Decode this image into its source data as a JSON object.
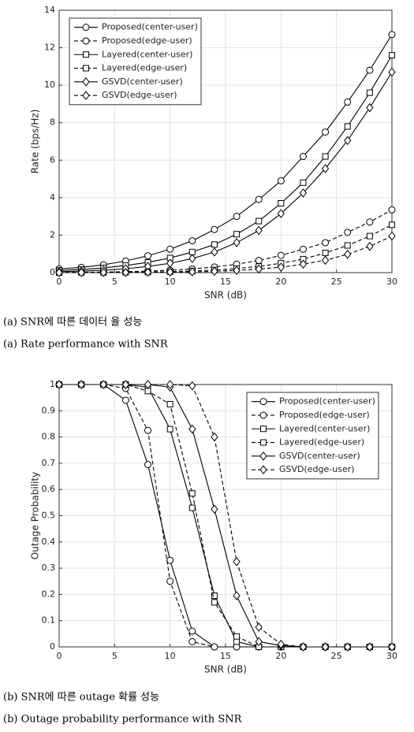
{
  "chart_data": [
    {
      "type": "line",
      "ylabel": "Rate (bps/Hz)",
      "xlabel": "SNR (dB)",
      "caption_ko": "(a) SNR에 따른 데이터 율 성능",
      "caption_en": "(a) Rate performance with SNR",
      "x": [
        0,
        2,
        4,
        6,
        8,
        10,
        12,
        14,
        16,
        18,
        20,
        22,
        24,
        26,
        28,
        30
      ],
      "xlim": [
        0,
        30
      ],
      "xticks": [
        0,
        5,
        10,
        15,
        20,
        25,
        30
      ],
      "ylim": [
        0,
        14
      ],
      "yticks": [
        0,
        2,
        4,
        6,
        8,
        10,
        12,
        14
      ],
      "grid": true,
      "legend": "upper left",
      "series": [
        {
          "name": "Proposed(center-user)",
          "color": "#000000",
          "linestyle": "solid",
          "marker": "circle",
          "values": [
            0.2,
            0.28,
            0.42,
            0.62,
            0.9,
            1.25,
            1.7,
            2.3,
            3.0,
            3.9,
            4.9,
            6.2,
            7.5,
            9.1,
            10.8,
            12.7
          ]
        },
        {
          "name": "Proposed(edge-user)",
          "color": "#000000",
          "linestyle": "dashed",
          "marker": "circle",
          "values": [
            0.01,
            0.02,
            0.03,
            0.05,
            0.08,
            0.13,
            0.2,
            0.3,
            0.45,
            0.65,
            0.92,
            1.25,
            1.6,
            2.15,
            2.7,
            3.35
          ]
        },
        {
          "name": "Layered(center-user)",
          "color": "#000000",
          "linestyle": "solid",
          "marker": "square",
          "values": [
            0.12,
            0.17,
            0.25,
            0.38,
            0.55,
            0.78,
            1.1,
            1.5,
            2.05,
            2.75,
            3.7,
            4.8,
            6.2,
            7.8,
            9.6,
            11.6
          ]
        },
        {
          "name": "Layered(edge-user)",
          "color": "#000000",
          "linestyle": "dashed",
          "marker": "square",
          "values": [
            0,
            0.01,
            0.01,
            0.02,
            0.03,
            0.05,
            0.09,
            0.14,
            0.22,
            0.33,
            0.5,
            0.72,
            1.05,
            1.45,
            1.95,
            2.55
          ]
        },
        {
          "name": "GSVD(center-user)",
          "color": "#000000",
          "linestyle": "solid",
          "marker": "diamond",
          "values": [
            0.05,
            0.08,
            0.13,
            0.21,
            0.33,
            0.5,
            0.75,
            1.1,
            1.6,
            2.25,
            3.15,
            4.25,
            5.55,
            7.05,
            8.8,
            10.7
          ]
        },
        {
          "name": "GSVD(edge-user)",
          "color": "#000000",
          "linestyle": "dashed",
          "marker": "diamond",
          "values": [
            0,
            0,
            0.01,
            0.01,
            0.02,
            0.03,
            0.04,
            0.07,
            0.12,
            0.19,
            0.29,
            0.45,
            0.66,
            0.98,
            1.4,
            1.95
          ]
        }
      ]
    },
    {
      "type": "line",
      "ylabel": "Outage Probability",
      "xlabel": "SNR (dB)",
      "caption_ko": "(b) SNR에 따른 outage 확률 성능",
      "caption_en": "(b) Outage probability performance with SNR",
      "x": [
        0,
        2,
        4,
        6,
        8,
        10,
        12,
        14,
        16,
        18,
        20,
        22,
        24,
        26,
        28,
        30
      ],
      "xlim": [
        0,
        30
      ],
      "xticks": [
        0,
        5,
        10,
        15,
        20,
        25,
        30
      ],
      "ylim": [
        0,
        1
      ],
      "yticks": [
        0,
        0.1,
        0.2,
        0.3,
        0.4,
        0.5,
        0.6,
        0.7,
        0.8,
        0.9,
        1
      ],
      "grid": true,
      "legend": "upper right",
      "series": [
        {
          "name": "Proposed(center-user)",
          "color": "#000000",
          "linestyle": "solid",
          "marker": "circle",
          "values": [
            1,
            1,
            1,
            0.94,
            0.695,
            0.33,
            0.06,
            0,
            0,
            0,
            0,
            0,
            0,
            0,
            0,
            0
          ]
        },
        {
          "name": "Proposed(edge-user)",
          "color": "#000000",
          "linestyle": "dashed",
          "marker": "circle",
          "values": [
            1,
            1,
            1,
            0.985,
            0.825,
            0.25,
            0.02,
            0,
            0,
            0,
            0,
            0,
            0,
            0,
            0,
            0
          ]
        },
        {
          "name": "Layered(center-user)",
          "color": "#000000",
          "linestyle": "solid",
          "marker": "square",
          "values": [
            1,
            1,
            1,
            1,
            0.99,
            0.83,
            0.53,
            0.195,
            0.02,
            0,
            0,
            0,
            0,
            0,
            0,
            0
          ]
        },
        {
          "name": "Layered(edge-user)",
          "color": "#000000",
          "linestyle": "dashed",
          "marker": "square",
          "values": [
            1,
            1,
            1,
            1,
            0.975,
            0.925,
            0.585,
            0.17,
            0.04,
            0,
            0,
            0,
            0,
            0,
            0,
            0
          ]
        },
        {
          "name": "GSVD(center-user)",
          "color": "#000000",
          "linestyle": "solid",
          "marker": "diamond",
          "values": [
            1,
            1,
            1,
            1,
            1,
            0.99,
            0.83,
            0.525,
            0.195,
            0.02,
            0.005,
            0,
            0,
            0,
            0,
            0
          ]
        },
        {
          "name": "GSVD(edge-user)",
          "color": "#000000",
          "linestyle": "dashed",
          "marker": "diamond",
          "values": [
            1,
            1,
            1,
            1,
            1,
            1,
            0.995,
            0.8,
            0.325,
            0.075,
            0.01,
            0,
            0,
            0,
            0,
            0
          ]
        }
      ]
    }
  ]
}
